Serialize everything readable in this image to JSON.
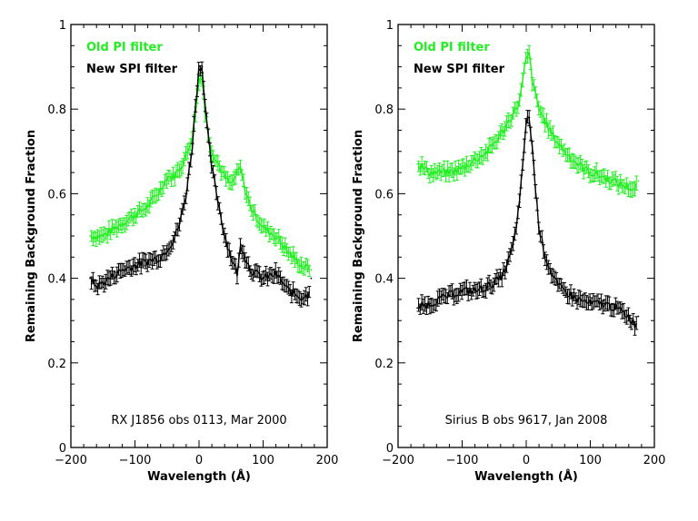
{
  "chart_data": [
    {
      "type": "scatter",
      "xlabel": "Wavelength (Å)",
      "ylabel": "Remaining Background Fraction",
      "xlim": [
        -200,
        200
      ],
      "ylim": [
        0,
        1
      ],
      "xticks": [
        "−200",
        "−100",
        "0",
        "100",
        "200"
      ],
      "yticks": [
        "0",
        "0.2",
        "0.4",
        "0.6",
        "0.8",
        "1"
      ],
      "annotation": "RX J1856 obs 0113, Mar 2000",
      "legend_position": "top-left",
      "series": [
        {
          "name": "Old PI filter",
          "color": "#22ee22",
          "x": [
            -170,
            -150,
            -120,
            -100,
            -80,
            -60,
            -50,
            -40,
            -30,
            -20,
            -10,
            -5,
            0,
            5,
            10,
            20,
            30,
            40,
            50,
            60,
            65,
            70,
            80,
            100,
            120,
            140,
            160,
            175
          ],
          "y": [
            0.5,
            0.5,
            0.53,
            0.55,
            0.57,
            0.61,
            0.64,
            0.64,
            0.66,
            0.69,
            0.74,
            0.8,
            0.87,
            0.88,
            0.78,
            0.7,
            0.67,
            0.64,
            0.62,
            0.65,
            0.66,
            0.62,
            0.57,
            0.52,
            0.5,
            0.46,
            0.43,
            0.42
          ]
        },
        {
          "name": "New SPI filter",
          "color": "#000000",
          "x": [
            -170,
            -160,
            -140,
            -120,
            -100,
            -80,
            -60,
            -50,
            -40,
            -30,
            -20,
            -10,
            -5,
            0,
            5,
            10,
            15,
            20,
            30,
            40,
            50,
            60,
            65,
            70,
            80,
            100,
            120,
            130,
            140,
            160,
            170,
            175
          ],
          "y": [
            0.4,
            0.38,
            0.4,
            0.42,
            0.43,
            0.44,
            0.45,
            0.47,
            0.49,
            0.53,
            0.6,
            0.72,
            0.82,
            0.9,
            0.9,
            0.8,
            0.72,
            0.66,
            0.58,
            0.5,
            0.45,
            0.41,
            0.48,
            0.46,
            0.42,
            0.4,
            0.41,
            0.39,
            0.37,
            0.355,
            0.36,
            0.4
          ]
        }
      ]
    },
    {
      "type": "scatter",
      "xlabel": "Wavelength (Å)",
      "ylabel": "Remaining Background Fraction",
      "xlim": [
        -200,
        200
      ],
      "ylim": [
        0,
        1
      ],
      "xticks": [
        "−200",
        "−100",
        "0",
        "100",
        "200"
      ],
      "yticks": [
        "0",
        "0.2",
        "0.4",
        "0.6",
        "0.8",
        "1"
      ],
      "annotation": "Sirius B obs 9617, Jan 2008",
      "legend_position": "top-left",
      "series": [
        {
          "name": "Old PI filter",
          "color": "#22ee22",
          "x": [
            -170,
            -150,
            -120,
            -100,
            -80,
            -60,
            -40,
            -20,
            -10,
            0,
            5,
            10,
            20,
            40,
            60,
            80,
            100,
            120,
            150,
            170,
            175
          ],
          "y": [
            0.67,
            0.65,
            0.65,
            0.66,
            0.68,
            0.7,
            0.74,
            0.79,
            0.82,
            0.92,
            0.93,
            0.86,
            0.8,
            0.74,
            0.7,
            0.67,
            0.65,
            0.64,
            0.62,
            0.61,
            0.63
          ]
        },
        {
          "name": "New SPI filter",
          "color": "#000000",
          "x": [
            -170,
            -150,
            -120,
            -100,
            -80,
            -60,
            -40,
            -30,
            -20,
            -10,
            -5,
            0,
            5,
            10,
            15,
            20,
            30,
            40,
            50,
            60,
            80,
            100,
            120,
            140,
            160,
            170,
            175
          ],
          "y": [
            0.33,
            0.34,
            0.36,
            0.37,
            0.37,
            0.38,
            0.4,
            0.43,
            0.48,
            0.58,
            0.68,
            0.77,
            0.78,
            0.7,
            0.6,
            0.52,
            0.45,
            0.41,
            0.38,
            0.37,
            0.35,
            0.34,
            0.34,
            0.33,
            0.31,
            0.29,
            0.31
          ]
        }
      ]
    }
  ]
}
